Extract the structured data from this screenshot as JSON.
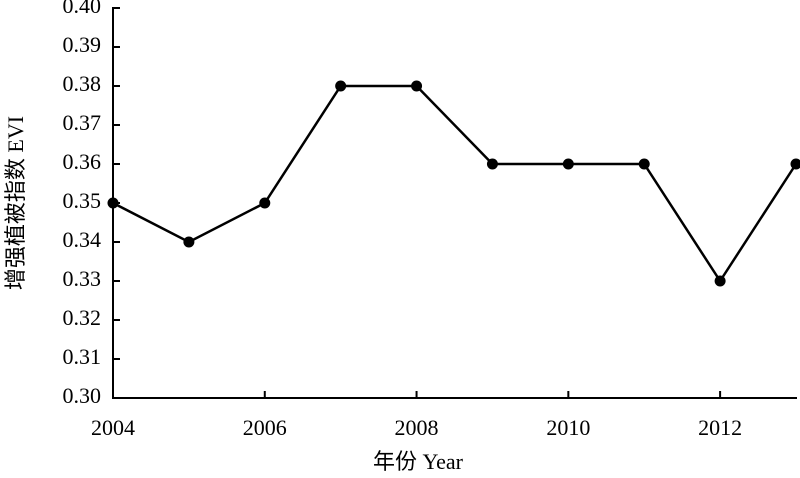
{
  "chart_data": {
    "type": "line",
    "x_label": "年份 Year",
    "y_label": "增强植被指数 EVI",
    "x": [
      2004,
      2005,
      2006,
      2007,
      2008,
      2009,
      2010,
      2011,
      2012,
      2013
    ],
    "series": [
      {
        "color": "#000000",
        "values": [
          0.35,
          0.34,
          0.35,
          0.38,
          0.38,
          0.36,
          0.36,
          0.36,
          0.33,
          0.36
        ]
      }
    ],
    "xlim": [
      2004,
      2013
    ],
    "xticks": [
      2004,
      2006,
      2008,
      2010,
      2012
    ],
    "ylim": [
      0.3,
      0.4
    ],
    "yticks": [
      {
        "value": 0.3,
        "label": "0.30"
      },
      0.31,
      0.32,
      0.33,
      0.34,
      0.35,
      0.36,
      0.37,
      0.38,
      0.39,
      {
        "value": 0.4,
        "label": "0.40"
      }
    ]
  }
}
